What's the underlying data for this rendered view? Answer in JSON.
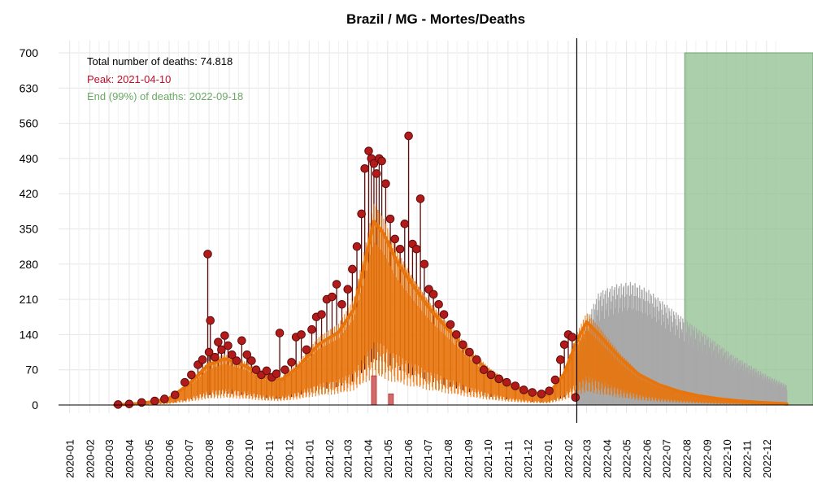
{
  "chart_data": {
    "type": "line",
    "title": "Brazil / MG - Mortes/Deaths",
    "xlabel": "",
    "ylabel": "",
    "ylim": [
      0,
      700
    ],
    "xlim": [
      "2019-12-15",
      "2023-02-10"
    ],
    "y_ticks": [
      0,
      70,
      140,
      210,
      280,
      350,
      420,
      490,
      560,
      630,
      700
    ],
    "x_tick_labels": [
      "2020-01",
      "2020-02",
      "2020-03",
      "2020-04",
      "2020-05",
      "2020-06",
      "2020-07",
      "2020-08",
      "2020-09",
      "2020-10",
      "2020-11",
      "2020-12",
      "2021-01",
      "2021-02",
      "2021-03",
      "2021-04",
      "2021-05",
      "2021-06",
      "2021-07",
      "2021-08",
      "2021-09",
      "2021-10",
      "2021-11",
      "2021-12",
      "2022-01",
      "2022-02",
      "2022-03",
      "2022-04",
      "2022-05",
      "2022-06",
      "2022-07",
      "2022-08",
      "2022-09",
      "2022-10",
      "2022-11",
      "2022-12"
    ],
    "grid": true,
    "annotations": {
      "total": "Total number of deaths: 74.818",
      "peak": "Peak: 2021-04-10",
      "end": "End (99%) of deaths: 2022-09-18"
    },
    "today_line": "2022-02-14",
    "peak_date": "2021-04-10",
    "end_region": {
      "start": "2022-07-29",
      "end": "2023-02-10",
      "level": 700
    },
    "colors": {
      "observed": "#b31b1b",
      "observed_edge": "#5a0d0d",
      "fit": "#e8740c",
      "forecast": "#a9a9a9",
      "end_region": "#8fbf8f",
      "peak_bar": "#d46a6a",
      "peak_text": "#c0102a",
      "end_text": "#6aaa64"
    },
    "series": [
      {
        "role": "observed",
        "points": [
          {
            "x": "2020-03-15",
            "y": 1
          },
          {
            "x": "2020-04-01",
            "y": 2
          },
          {
            "x": "2020-04-20",
            "y": 5
          },
          {
            "x": "2020-05-10",
            "y": 8
          },
          {
            "x": "2020-05-25",
            "y": 12
          },
          {
            "x": "2020-06-10",
            "y": 20
          },
          {
            "x": "2020-06-25",
            "y": 45
          },
          {
            "x": "2020-07-05",
            "y": 60
          },
          {
            "x": "2020-07-15",
            "y": 80
          },
          {
            "x": "2020-07-22",
            "y": 90
          },
          {
            "x": "2020-07-30",
            "y": 300
          },
          {
            "x": "2020-08-01",
            "y": 105
          },
          {
            "x": "2020-08-03",
            "y": 168
          },
          {
            "x": "2020-08-10",
            "y": 95
          },
          {
            "x": "2020-08-15",
            "y": 125
          },
          {
            "x": "2020-08-20",
            "y": 110
          },
          {
            "x": "2020-08-25",
            "y": 138
          },
          {
            "x": "2020-08-30",
            "y": 118
          },
          {
            "x": "2020-09-05",
            "y": 100
          },
          {
            "x": "2020-09-12",
            "y": 88
          },
          {
            "x": "2020-09-20",
            "y": 128
          },
          {
            "x": "2020-09-28",
            "y": 100
          },
          {
            "x": "2020-10-05",
            "y": 88
          },
          {
            "x": "2020-10-12",
            "y": 70
          },
          {
            "x": "2020-10-20",
            "y": 60
          },
          {
            "x": "2020-10-28",
            "y": 68
          },
          {
            "x": "2020-11-05",
            "y": 55
          },
          {
            "x": "2020-11-12",
            "y": 62
          },
          {
            "x": "2020-11-17",
            "y": 143
          },
          {
            "x": "2020-11-25",
            "y": 70
          },
          {
            "x": "2020-12-05",
            "y": 85
          },
          {
            "x": "2020-12-12",
            "y": 135
          },
          {
            "x": "2020-12-20",
            "y": 140
          },
          {
            "x": "2020-12-28",
            "y": 110
          },
          {
            "x": "2021-01-05",
            "y": 150
          },
          {
            "x": "2021-01-12",
            "y": 175
          },
          {
            "x": "2021-01-20",
            "y": 180
          },
          {
            "x": "2021-01-28",
            "y": 210
          },
          {
            "x": "2021-02-05",
            "y": 215
          },
          {
            "x": "2021-02-12",
            "y": 240
          },
          {
            "x": "2021-02-20",
            "y": 200
          },
          {
            "x": "2021-03-01",
            "y": 230
          },
          {
            "x": "2021-03-08",
            "y": 270
          },
          {
            "x": "2021-03-15",
            "y": 315
          },
          {
            "x": "2021-03-22",
            "y": 380
          },
          {
            "x": "2021-03-27",
            "y": 470
          },
          {
            "x": "2021-04-02",
            "y": 505
          },
          {
            "x": "2021-04-06",
            "y": 490
          },
          {
            "x": "2021-04-10",
            "y": 480
          },
          {
            "x": "2021-04-14",
            "y": 460
          },
          {
            "x": "2021-04-18",
            "y": 490
          },
          {
            "x": "2021-04-22",
            "y": 485
          },
          {
            "x": "2021-04-28",
            "y": 440
          },
          {
            "x": "2021-05-05",
            "y": 370
          },
          {
            "x": "2021-05-12",
            "y": 330
          },
          {
            "x": "2021-05-20",
            "y": 310
          },
          {
            "x": "2021-05-27",
            "y": 360
          },
          {
            "x": "2021-06-02",
            "y": 535
          },
          {
            "x": "2021-06-08",
            "y": 320
          },
          {
            "x": "2021-06-14",
            "y": 310
          },
          {
            "x": "2021-06-20",
            "y": 410
          },
          {
            "x": "2021-06-26",
            "y": 280
          },
          {
            "x": "2021-07-03",
            "y": 230
          },
          {
            "x": "2021-07-10",
            "y": 220
          },
          {
            "x": "2021-07-18",
            "y": 200
          },
          {
            "x": "2021-07-26",
            "y": 180
          },
          {
            "x": "2021-08-05",
            "y": 160
          },
          {
            "x": "2021-08-14",
            "y": 140
          },
          {
            "x": "2021-08-24",
            "y": 120
          },
          {
            "x": "2021-09-03",
            "y": 105
          },
          {
            "x": "2021-09-14",
            "y": 90
          },
          {
            "x": "2021-09-25",
            "y": 70
          },
          {
            "x": "2021-10-06",
            "y": 60
          },
          {
            "x": "2021-10-18",
            "y": 52
          },
          {
            "x": "2021-10-30",
            "y": 45
          },
          {
            "x": "2021-11-12",
            "y": 38
          },
          {
            "x": "2021-11-25",
            "y": 30
          },
          {
            "x": "2021-12-08",
            "y": 25
          },
          {
            "x": "2021-12-22",
            "y": 22
          },
          {
            "x": "2022-01-03",
            "y": 28
          },
          {
            "x": "2022-01-12",
            "y": 50
          },
          {
            "x": "2022-01-20",
            "y": 90
          },
          {
            "x": "2022-01-26",
            "y": 120
          },
          {
            "x": "2022-02-01",
            "y": 140
          },
          {
            "x": "2022-02-07",
            "y": 135
          },
          {
            "x": "2022-02-12",
            "y": 15
          }
        ]
      },
      {
        "role": "fit",
        "points": [
          {
            "x": "2020-03-10",
            "y": 0
          },
          {
            "x": "2020-04-20",
            "y": 3
          },
          {
            "x": "2020-05-31",
            "y": 12
          },
          {
            "x": "2020-06-30",
            "y": 40
          },
          {
            "x": "2020-07-31",
            "y": 80
          },
          {
            "x": "2020-08-25",
            "y": 92
          },
          {
            "x": "2020-09-25",
            "y": 78
          },
          {
            "x": "2020-10-25",
            "y": 55
          },
          {
            "x": "2020-11-20",
            "y": 50
          },
          {
            "x": "2020-12-15",
            "y": 75
          },
          {
            "x": "2021-01-15",
            "y": 120
          },
          {
            "x": "2021-02-15",
            "y": 145
          },
          {
            "x": "2021-03-10",
            "y": 190
          },
          {
            "x": "2021-03-25",
            "y": 270
          },
          {
            "x": "2021-04-10",
            "y": 365
          },
          {
            "x": "2021-04-25",
            "y": 340
          },
          {
            "x": "2021-05-15",
            "y": 285
          },
          {
            "x": "2021-06-10",
            "y": 235
          },
          {
            "x": "2021-07-05",
            "y": 190
          },
          {
            "x": "2021-08-05",
            "y": 145
          },
          {
            "x": "2021-09-05",
            "y": 100
          },
          {
            "x": "2021-10-05",
            "y": 65
          },
          {
            "x": "2021-11-05",
            "y": 40
          },
          {
            "x": "2021-12-05",
            "y": 25
          },
          {
            "x": "2022-01-01",
            "y": 20
          },
          {
            "x": "2022-01-25",
            "y": 60
          },
          {
            "x": "2022-02-15",
            "y": 130
          },
          {
            "x": "2022-03-01",
            "y": 165
          },
          {
            "x": "2022-03-20",
            "y": 140
          },
          {
            "x": "2022-04-20",
            "y": 95
          },
          {
            "x": "2022-05-20",
            "y": 60
          },
          {
            "x": "2022-06-20",
            "y": 40
          },
          {
            "x": "2022-07-20",
            "y": 27
          },
          {
            "x": "2022-08-20",
            "y": 18
          },
          {
            "x": "2022-09-20",
            "y": 12
          },
          {
            "x": "2022-10-20",
            "y": 8
          },
          {
            "x": "2022-11-20",
            "y": 5
          },
          {
            "x": "2022-12-20",
            "y": 3
          },
          {
            "x": "2023-01-01",
            "y": 2
          }
        ]
      },
      {
        "role": "forecast",
        "points": [
          {
            "x": "2022-02-14",
            "y": 110
          },
          {
            "x": "2022-03-01",
            "y": 170
          },
          {
            "x": "2022-03-20",
            "y": 225
          },
          {
            "x": "2022-04-15",
            "y": 240
          },
          {
            "x": "2022-05-10",
            "y": 245
          },
          {
            "x": "2022-06-05",
            "y": 228
          },
          {
            "x": "2022-07-01",
            "y": 200
          },
          {
            "x": "2022-07-25",
            "y": 175
          },
          {
            "x": "2022-08-20",
            "y": 150
          },
          {
            "x": "2022-09-15",
            "y": 125
          },
          {
            "x": "2022-10-10",
            "y": 100
          },
          {
            "x": "2022-11-05",
            "y": 80
          },
          {
            "x": "2022-12-01",
            "y": 60
          },
          {
            "x": "2022-12-25",
            "y": 45
          },
          {
            "x": "2023-01-01",
            "y": 40
          }
        ]
      }
    ]
  }
}
